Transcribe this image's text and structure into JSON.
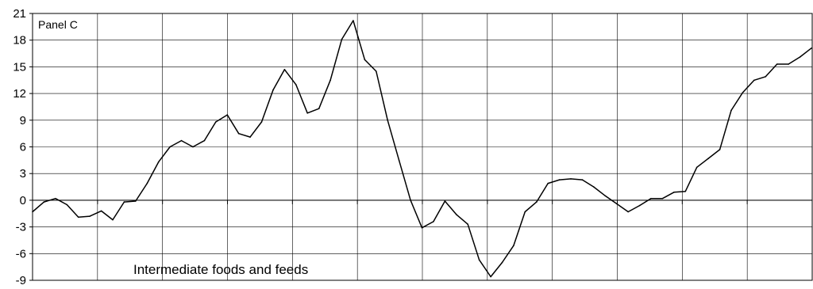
{
  "chart_data": {
    "type": "line",
    "title": "",
    "xlabel": "",
    "ylabel": "",
    "panel_label": "Panel C",
    "annotation": "Intermediate foods and feeds",
    "ylim": [
      -9,
      21
    ],
    "yticks": [
      "21",
      "18",
      "15",
      "12",
      "9",
      "6",
      "3",
      "0",
      "-3",
      "-6",
      "-9"
    ],
    "ytick_values": [
      21,
      18,
      15,
      12,
      9,
      6,
      3,
      0,
      -3,
      -6,
      -9
    ],
    "x_divisions": 12,
    "grid": true,
    "line_color": "#000000",
    "series": [
      {
        "values": [
          -1.3,
          -0.2,
          0.2,
          -0.5,
          -1.9,
          -1.8,
          -1.2,
          -2.2,
          -0.2,
          -0.1,
          1.9,
          4.3,
          6.0,
          6.7,
          6.0,
          6.7,
          8.8,
          9.6,
          7.5,
          7.1,
          8.8,
          12.4,
          14.7,
          13.0,
          9.8,
          10.3,
          13.5,
          18.1,
          20.2,
          15.8,
          14.5,
          9.0,
          4.5,
          0.0,
          -3.1,
          -2.4,
          -0.1,
          -1.6,
          -2.7,
          -6.7,
          -8.6,
          -7.0,
          -5.1,
          -1.3,
          -0.2,
          1.9,
          2.3,
          2.4,
          2.3,
          1.5,
          0.5,
          -0.4,
          -1.3,
          -0.6,
          0.2,
          0.2,
          0.9,
          1.0,
          3.7,
          4.7,
          5.7,
          10.1,
          12.1,
          13.5,
          13.9,
          15.3,
          15.3,
          16.1,
          17.1
        ]
      }
    ]
  }
}
